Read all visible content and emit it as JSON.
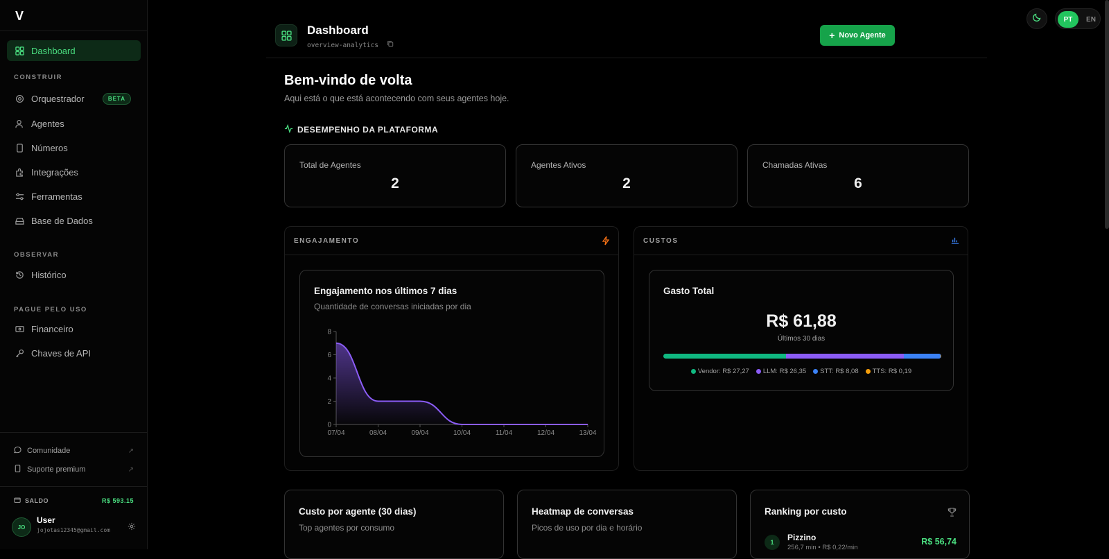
{
  "sidebar": {
    "logo": "V",
    "active_item": "Dashboard",
    "sections": [
      {
        "label": "CONSTRUIR",
        "items": [
          "Orquestrador",
          "Agentes",
          "Números",
          "Integrações",
          "Ferramentas",
          "Base de Dados"
        ]
      },
      {
        "label": "OBSERVAR",
        "items": [
          "Histórico"
        ]
      },
      {
        "label": "PAGUE PELO USO",
        "items": [
          "Financeiro",
          "Chaves de API"
        ]
      }
    ],
    "beta_badge": "BETA",
    "footer_links": [
      "Comunidade",
      "Suporte premium"
    ],
    "saldo_label": "SALDO",
    "saldo_value": "R$ 593.15",
    "user": {
      "initials": "JO",
      "name": "User",
      "email": "jojotas12345@gmail.com"
    }
  },
  "topbar": {
    "lang_active": "PT",
    "lang_other": "EN"
  },
  "header": {
    "title": "Dashboard",
    "slug": "overview-analytics",
    "new_agent_label": "Novo Agente"
  },
  "welcome": {
    "title": "Bem-vindo de volta",
    "subtitle": "Aqui está o que está acontecendo com seus agentes hoje."
  },
  "performance": {
    "label": "DESEMPENHO DA PLATAFORMA",
    "stats": [
      {
        "label": "Total de Agentes",
        "value": "2"
      },
      {
        "label": "Agentes Ativos",
        "value": "2"
      },
      {
        "label": "Chamadas Ativas",
        "value": "6"
      }
    ]
  },
  "engagement": {
    "panel_label": "ENGAJAMENTO",
    "card_title": "Engajamento nos últimos 7 dias",
    "card_subtitle": "Quantidade de conversas iniciadas por dia"
  },
  "chart_data": {
    "type": "area",
    "categories": [
      "07/04",
      "08/04",
      "09/04",
      "10/04",
      "11/04",
      "12/04",
      "13/04"
    ],
    "values": [
      7,
      2,
      2,
      0,
      0,
      0,
      0
    ],
    "ylim": [
      0,
      8
    ],
    "yticks": [
      "0",
      "2",
      "4",
      "6",
      "8"
    ],
    "color": "#8b5cf6"
  },
  "costs": {
    "panel_label": "CUSTOS",
    "card_title": "Gasto Total",
    "total": "R$ 61,88",
    "period": "Últimos 30 dias",
    "breakdown": [
      {
        "label": "Vendor: R$ 27,27",
        "amount": 27.27,
        "color": "#10b981"
      },
      {
        "label": "LLM: R$ 26,35",
        "amount": 26.35,
        "color": "#8b5cf6"
      },
      {
        "label": "STT: R$ 8,08",
        "amount": 8.08,
        "color": "#3b82f6"
      },
      {
        "label": "TTS: R$ 0,19",
        "amount": 0.19,
        "color": "#f59e0b"
      }
    ]
  },
  "bottom_cards": [
    {
      "title": "Custo por agente (30 dias)",
      "subtitle": "Top agentes por consumo"
    },
    {
      "title": "Heatmap de conversas",
      "subtitle": "Picos de uso por dia e horário"
    },
    {
      "title": "Ranking por custo",
      "rank": "1",
      "item_name": "Pizzino",
      "item_sub": "256,7 min • R$ 0,22/min",
      "item_value": "R$ 56,74"
    }
  ]
}
